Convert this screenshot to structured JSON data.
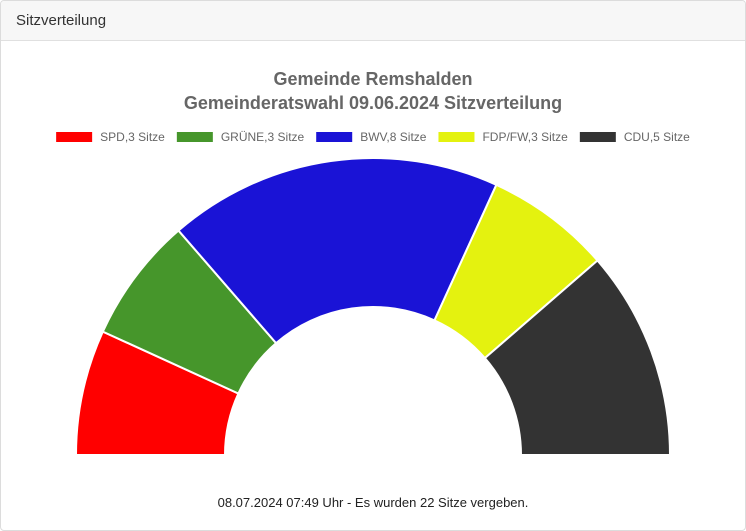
{
  "panel": {
    "title": "Sitzverteilung"
  },
  "chart_data": {
    "type": "pie",
    "variant": "semicircle-donut",
    "title": "Gemeinde Remshalden",
    "subtitle": "Gemeinderatswahl 09.06.2024 Sitzverteilung",
    "legend_position": "top",
    "series": [
      {
        "name": "SPD,3 Sitze",
        "party": "SPD",
        "value": 3,
        "color": "#ff0000"
      },
      {
        "name": "GRÜNE,3 Sitze",
        "party": "GRÜNE",
        "value": 3,
        "color": "#46962b"
      },
      {
        "name": "BWV,8 Sitze",
        "party": "BWV",
        "value": 8,
        "color": "#1a13d6"
      },
      {
        "name": "FDP/FW,3 Sitze",
        "party": "FDP/FW",
        "value": 3,
        "color": "#e4f20f"
      },
      {
        "name": "CDU,5 Sitze",
        "party": "CDU",
        "value": 5,
        "color": "#333333"
      }
    ]
  },
  "footer": {
    "text": "08.07.2024 07:49 Uhr - Es wurden 22 Sitze vergeben."
  }
}
